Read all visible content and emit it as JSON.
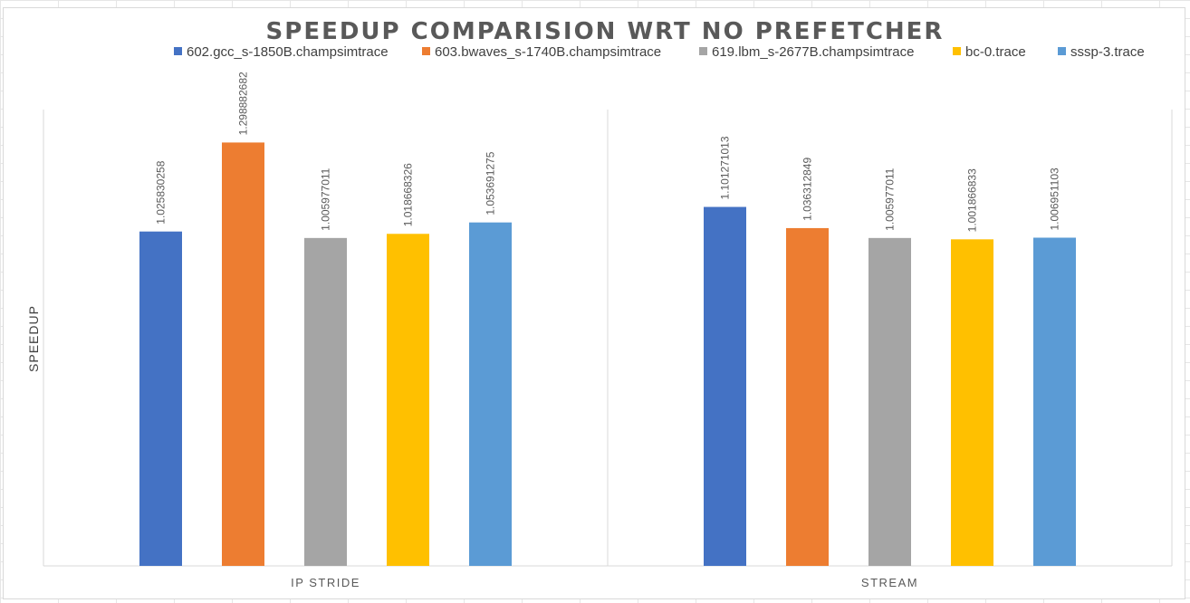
{
  "chart_data": {
    "type": "bar",
    "title": "SPEEDUP COMPARISION WRT NO PREFETCHER",
    "ylabel": "SPEEDUP",
    "xlabel": "",
    "categories": [
      "IP STRIDE",
      "STREAM"
    ],
    "series": [
      {
        "name": "602.gcc_s-1850B.champsimtrace",
        "color": "#4472c4",
        "values": [
          1.025830258,
          1.101271013
        ],
        "labels": [
          "1.025830258",
          "1.101271013"
        ]
      },
      {
        "name": "603.bwaves_s-1740B.champsimtrace",
        "color": "#ed7d31",
        "values": [
          1.298882682,
          1.036312849
        ],
        "labels": [
          "1.298882682",
          "1.036312849"
        ]
      },
      {
        "name": "619.lbm_s-2677B.champsimtrace",
        "color": "#a5a5a5",
        "values": [
          1.005977011,
          1.005977011
        ],
        "labels": [
          "1.005977011",
          "1.005977011"
        ]
      },
      {
        "name": "bc-0.trace",
        "color": "#ffc000",
        "values": [
          1.018668326,
          1.001866833
        ],
        "labels": [
          "1.018668326",
          "1.001866833"
        ]
      },
      {
        "name": "sssp-3.trace",
        "color": "#5b9bd5",
        "values": [
          1.053691275,
          1.006951103
        ],
        "labels": [
          "1.053691275",
          "1.006951103"
        ]
      }
    ],
    "ylim": [
      0,
      1.4
    ],
    "grid": false,
    "legend_position": "top"
  }
}
